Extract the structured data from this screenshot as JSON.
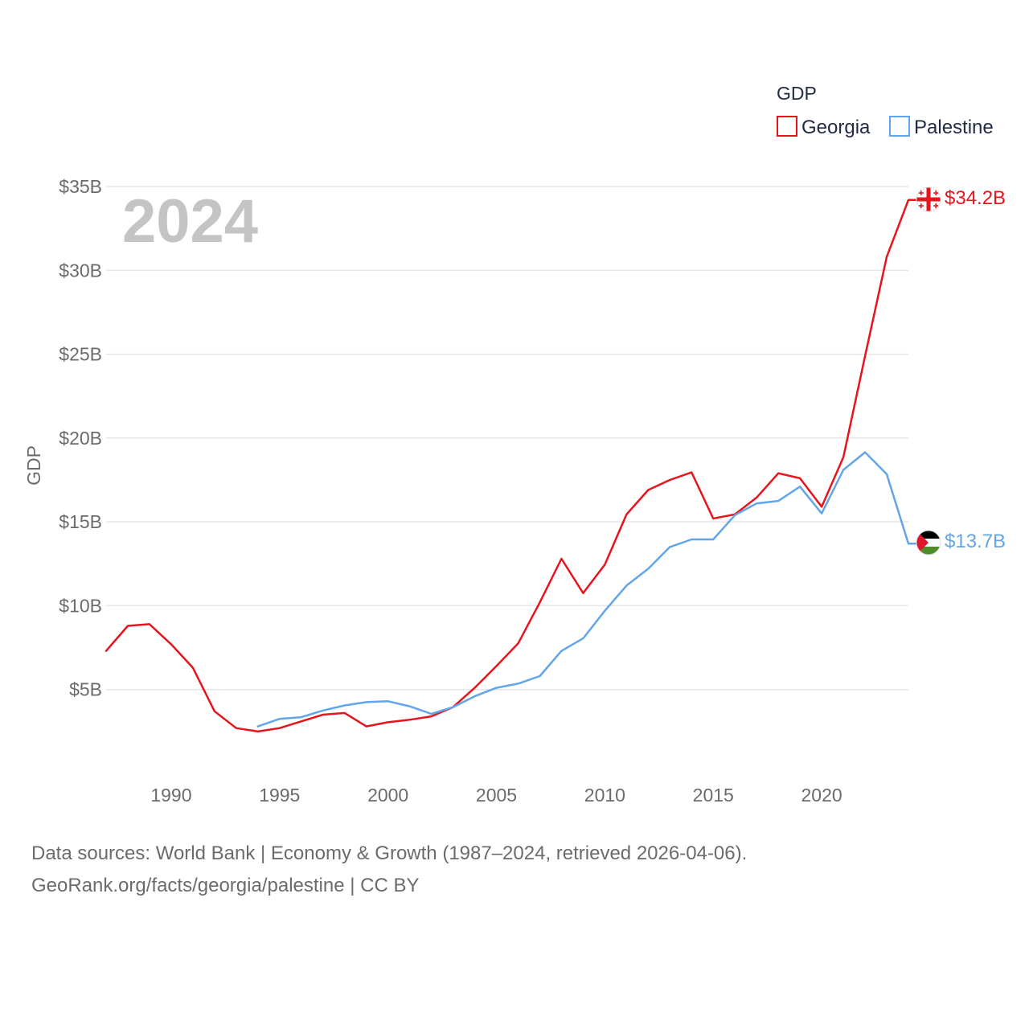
{
  "chart_data": {
    "type": "line",
    "title": "",
    "highlight_year": "2024",
    "xlabel": "",
    "ylabel": "GDP",
    "xlim": [
      1987,
      2024
    ],
    "ylim": [
      0,
      35
    ],
    "x_ticks": [
      1990,
      1995,
      2000,
      2005,
      2010,
      2015,
      2020
    ],
    "x_tick_labels": [
      "1990",
      "1995",
      "2000",
      "2005",
      "2010",
      "2015",
      "2020"
    ],
    "y_ticks": [
      5,
      10,
      15,
      20,
      25,
      30,
      35
    ],
    "y_tick_labels": [
      "$5B",
      "$10B",
      "$15B",
      "$20B",
      "$25B",
      "$30B",
      "$35B"
    ],
    "grid": true,
    "legend": {
      "title": "GDP",
      "position": "top-right"
    },
    "series": [
      {
        "name": "Georgia",
        "color": "#e8141d",
        "end_label": "$34.2B",
        "flag_icon": "georgia-flag-icon",
        "x": [
          1987,
          1988,
          1989,
          1990,
          1991,
          1992,
          1993,
          1994,
          1995,
          1996,
          1997,
          1998,
          1999,
          2000,
          2001,
          2002,
          2003,
          2004,
          2005,
          2006,
          2007,
          2008,
          2009,
          2010,
          2011,
          2012,
          2013,
          2014,
          2015,
          2016,
          2017,
          2018,
          2019,
          2020,
          2021,
          2022,
          2023,
          2024
        ],
        "values": [
          7.3,
          8.8,
          8.9,
          7.7,
          6.3,
          3.7,
          2.7,
          2.5,
          2.7,
          3.1,
          3.5,
          3.6,
          2.8,
          3.05,
          3.2,
          3.4,
          3.95,
          5.1,
          6.4,
          7.75,
          10.2,
          12.8,
          10.75,
          12.45,
          15.45,
          16.9,
          17.5,
          17.95,
          15.2,
          15.45,
          16.45,
          17.9,
          17.6,
          15.9,
          18.85,
          24.9,
          30.8,
          34.2
        ]
      },
      {
        "name": "Palestine",
        "color": "#62a5e8",
        "end_label": "$13.7B",
        "flag_icon": "palestine-flag-icon",
        "x": [
          1994,
          1995,
          1996,
          1997,
          1998,
          1999,
          2000,
          2001,
          2002,
          2003,
          2004,
          2005,
          2006,
          2007,
          2008,
          2009,
          2010,
          2011,
          2012,
          2013,
          2014,
          2015,
          2016,
          2017,
          2018,
          2019,
          2020,
          2021,
          2022,
          2023,
          2024
        ],
        "values": [
          2.8,
          3.25,
          3.35,
          3.75,
          4.05,
          4.25,
          4.3,
          4.0,
          3.55,
          3.95,
          4.6,
          5.1,
          5.35,
          5.8,
          7.3,
          8.05,
          9.7,
          11.2,
          12.2,
          13.5,
          13.95,
          13.95,
          15.4,
          16.1,
          16.25,
          17.1,
          15.5,
          18.1,
          19.15,
          17.85,
          13.7
        ]
      }
    ]
  },
  "footer": {
    "line1": "Data sources: World Bank | Economy & Growth (1987–2024, retrieved 2026-04-06).",
    "line2": "GeoRank.org/facts/georgia/palestine | CC BY"
  }
}
